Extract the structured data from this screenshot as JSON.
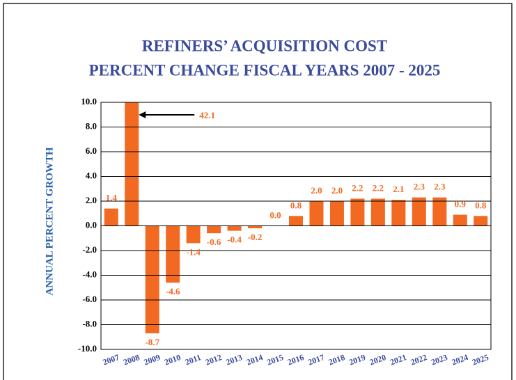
{
  "chart_data": {
    "type": "bar",
    "title": [
      "REFINERS’ ACQUISITION COST",
      "PERCENT CHANGE FISCAL YEARS 2007   - 2025"
    ],
    "y_label": "ANNUAL PERCENT GROWTH",
    "categories": [
      "2007",
      "2008",
      "2009",
      "2010",
      "2011",
      "2012",
      "2013",
      "2014",
      "2015",
      "2016",
      "2017",
      "2018",
      "2019",
      "2020",
      "2021",
      "2022",
      "2023",
      "2024",
      "2025"
    ],
    "values": [
      1.4,
      42.1,
      -8.7,
      -4.6,
      -1.4,
      -0.6,
      -0.4,
      -0.2,
      0.0,
      0.8,
      2.0,
      2.0,
      2.2,
      2.2,
      2.1,
      2.3,
      2.3,
      0.9,
      0.8
    ],
    "value_labels": [
      "1.4",
      "42.1",
      "-8.7",
      "-4.6",
      "-1.4",
      "-0.6",
      "-0.4",
      "-0.2",
      "0.0",
      "0.8",
      "2.0",
      "2.0",
      "2.2",
      "2.2",
      "2.1",
      "2.3",
      "2.3",
      "0.9",
      "0.8"
    ],
    "color": "#f26a21",
    "ylim": [
      -10,
      10
    ],
    "yticks": [
      {
        "value": -10,
        "label": "-10.0"
      },
      {
        "value": -8,
        "label": "-8.0"
      },
      {
        "value": -6,
        "label": "-6.0"
      },
      {
        "value": -4,
        "label": "-4.0"
      },
      {
        "value": -2,
        "label": "-2.0"
      },
      {
        "value": 0,
        "label": "0.0"
      },
      {
        "value": 2,
        "label": "2.0"
      },
      {
        "value": 4,
        "label": "4.0"
      },
      {
        "value": 6,
        "label": "6.0"
      },
      {
        "value": 8,
        "label": "8.0"
      },
      {
        "value": 10,
        "label": "10.0"
      }
    ],
    "grid": true
  }
}
